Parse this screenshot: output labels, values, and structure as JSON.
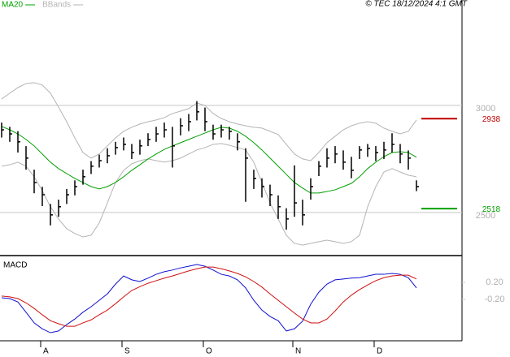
{
  "chart_data": [
    {
      "type": "ohlc",
      "legend": "top-left",
      "source": "© TEC 18/12/2024 4:1 GMT",
      "categories": [
        null,
        null,
        null,
        null,
        null,
        "A",
        null,
        null,
        null,
        null,
        null,
        null,
        null,
        null,
        null,
        "S",
        null,
        null,
        null,
        null,
        null,
        null,
        null,
        null,
        null,
        "O",
        null,
        null,
        null,
        null,
        null,
        null,
        null,
        null,
        null,
        null,
        "N",
        null,
        null,
        null,
        null,
        null,
        null,
        null,
        null,
        null,
        "D",
        null,
        null,
        null,
        null,
        null
      ],
      "high": [
        2920,
        2900,
        2880,
        2810,
        2700,
        2620,
        2540,
        2560,
        2610,
        2650,
        2700,
        2740,
        2770,
        2800,
        2830,
        2850,
        2820,
        2840,
        2870,
        2900,
        2920,
        2900,
        2940,
        2960,
        3020,
        2990,
        2910,
        2910,
        2900,
        2870,
        2800,
        2700,
        2660,
        2630,
        2580,
        2520,
        2720,
        2560,
        2660,
        2740,
        2800,
        2810,
        2790,
        2760,
        2810,
        2820,
        2810,
        2830,
        2870,
        2820,
        2790,
        2650
      ],
      "low": [
        2850,
        2830,
        2780,
        2700,
        2590,
        2530,
        2440,
        2480,
        2540,
        2580,
        2630,
        2680,
        2710,
        2730,
        2770,
        2790,
        2750,
        2770,
        2810,
        2830,
        2850,
        2710,
        2860,
        2880,
        2930,
        2880,
        2840,
        2850,
        2840,
        2790,
        2550,
        2610,
        2570,
        2530,
        2470,
        2420,
        2480,
        2440,
        2560,
        2670,
        2710,
        2730,
        2700,
        2660,
        2750,
        2760,
        2740,
        2750,
        2780,
        2730,
        2700,
        2600
      ],
      "close": [
        2886,
        2867,
        2830,
        2754,
        2640,
        2583,
        2489,
        2527,
        2583,
        2621,
        2667,
        2716,
        2742,
        2765,
        2803,
        2818,
        2780,
        2811,
        2841,
        2867,
        2886,
        2811,
        2905,
        2924,
        2970,
        2924,
        2867,
        2886,
        2879,
        2830,
        2754,
        2659,
        2621,
        2583,
        2527,
        2470,
        2545,
        2489,
        2621,
        2716,
        2754,
        2773,
        2735,
        2697,
        2792,
        2799,
        2780,
        2792,
        2818,
        2773,
        2754,
        2621
      ],
      "bar_color": "#000000",
      "series": [
        {
          "name": "MA20",
          "color": "#00a000",
          "values": [
            2902,
            2886,
            2867,
            2841,
            2811,
            2773,
            2735,
            2705,
            2682,
            2659,
            2640,
            2621,
            2610,
            2621,
            2640,
            2667,
            2697,
            2723,
            2750,
            2773,
            2795,
            2811,
            2826,
            2841,
            2856,
            2871,
            2886,
            2898,
            2894,
            2879,
            2856,
            2826,
            2792,
            2754,
            2716,
            2678,
            2640,
            2614,
            2591,
            2591,
            2598,
            2606,
            2621,
            2636,
            2667,
            2705,
            2735,
            2761,
            2780,
            2784,
            2780,
            2758
          ]
        },
        {
          "name": "BBands",
          "color": "#b4b4b4",
          "upper": [
            3030,
            3057,
            3083,
            3102,
            3106,
            3095,
            3057,
            2992,
            2924,
            2848,
            2780,
            2754,
            2773,
            2811,
            2848,
            2879,
            2898,
            2913,
            2924,
            2932,
            2943,
            2962,
            2973,
            2985,
            3011,
            3000,
            2962,
            2939,
            2924,
            2913,
            2905,
            2898,
            2894,
            2879,
            2864,
            2818,
            2773,
            2750,
            2742,
            2780,
            2826,
            2856,
            2886,
            2905,
            2917,
            2924,
            2917,
            2894,
            2879,
            2867,
            2879,
            2932
          ],
          "lower": [
            2716,
            2723,
            2735,
            2716,
            2667,
            2602,
            2527,
            2470,
            2424,
            2402,
            2386,
            2394,
            2451,
            2545,
            2640,
            2697,
            2727,
            2742,
            2750,
            2742,
            2735,
            2742,
            2754,
            2773,
            2792,
            2803,
            2818,
            2822,
            2814,
            2803,
            2792,
            2735,
            2640,
            2545,
            2470,
            2394,
            2356,
            2348,
            2356,
            2364,
            2371,
            2364,
            2356,
            2364,
            2394,
            2527,
            2621,
            2689,
            2705,
            2689,
            2674,
            2667
          ]
        }
      ],
      "levels": [
        {
          "value": 2938,
          "color": "#c00000"
        },
        {
          "value": 2518,
          "color": "#00a000"
        }
      ],
      "ylim": [
        2299,
        3492
      ],
      "yticks": [
        2500,
        3000
      ],
      "grid": true
    },
    {
      "type": "line",
      "title": "MACD",
      "series": [
        {
          "color": "#1010d0",
          "values": [
            -0.16,
            -0.18,
            -0.26,
            -0.5,
            -0.75,
            -0.89,
            -0.98,
            -0.94,
            -0.79,
            -0.66,
            -0.5,
            -0.37,
            -0.22,
            -0.07,
            0.16,
            0.35,
            0.26,
            0.22,
            0.3,
            0.39,
            0.45,
            0.49,
            0.54,
            0.58,
            0.62,
            0.58,
            0.49,
            0.39,
            0.35,
            0.26,
            0.07,
            -0.22,
            -0.45,
            -0.6,
            -0.7,
            -0.94,
            -0.89,
            -0.71,
            -0.31,
            -0.03,
            0.16,
            0.26,
            0.28,
            0.3,
            0.31,
            0.35,
            0.39,
            0.39,
            0.41,
            0.39,
            0.31,
            0.07
          ]
        },
        {
          "color": "#d01010",
          "values": [
            -0.12,
            -0.14,
            -0.18,
            -0.28,
            -0.41,
            -0.56,
            -0.7,
            -0.77,
            -0.83,
            -0.83,
            -0.75,
            -0.68,
            -0.56,
            -0.45,
            -0.3,
            -0.14,
            0.01,
            0.1,
            0.18,
            0.24,
            0.3,
            0.35,
            0.41,
            0.47,
            0.52,
            0.56,
            0.56,
            0.52,
            0.47,
            0.41,
            0.33,
            0.22,
            0.09,
            -0.07,
            -0.22,
            -0.37,
            -0.52,
            -0.66,
            -0.75,
            -0.75,
            -0.66,
            -0.47,
            -0.26,
            -0.1,
            0.03,
            0.14,
            0.24,
            0.31,
            0.35,
            0.37,
            0.37,
            0.28
          ]
        }
      ],
      "ylim": [
        -1.17,
        0.81
      ],
      "yticks": [
        {
          "value": 0.2,
          "label": "0.20"
        },
        {
          "value": -0.2,
          "label": "-0.20"
        }
      ]
    }
  ]
}
